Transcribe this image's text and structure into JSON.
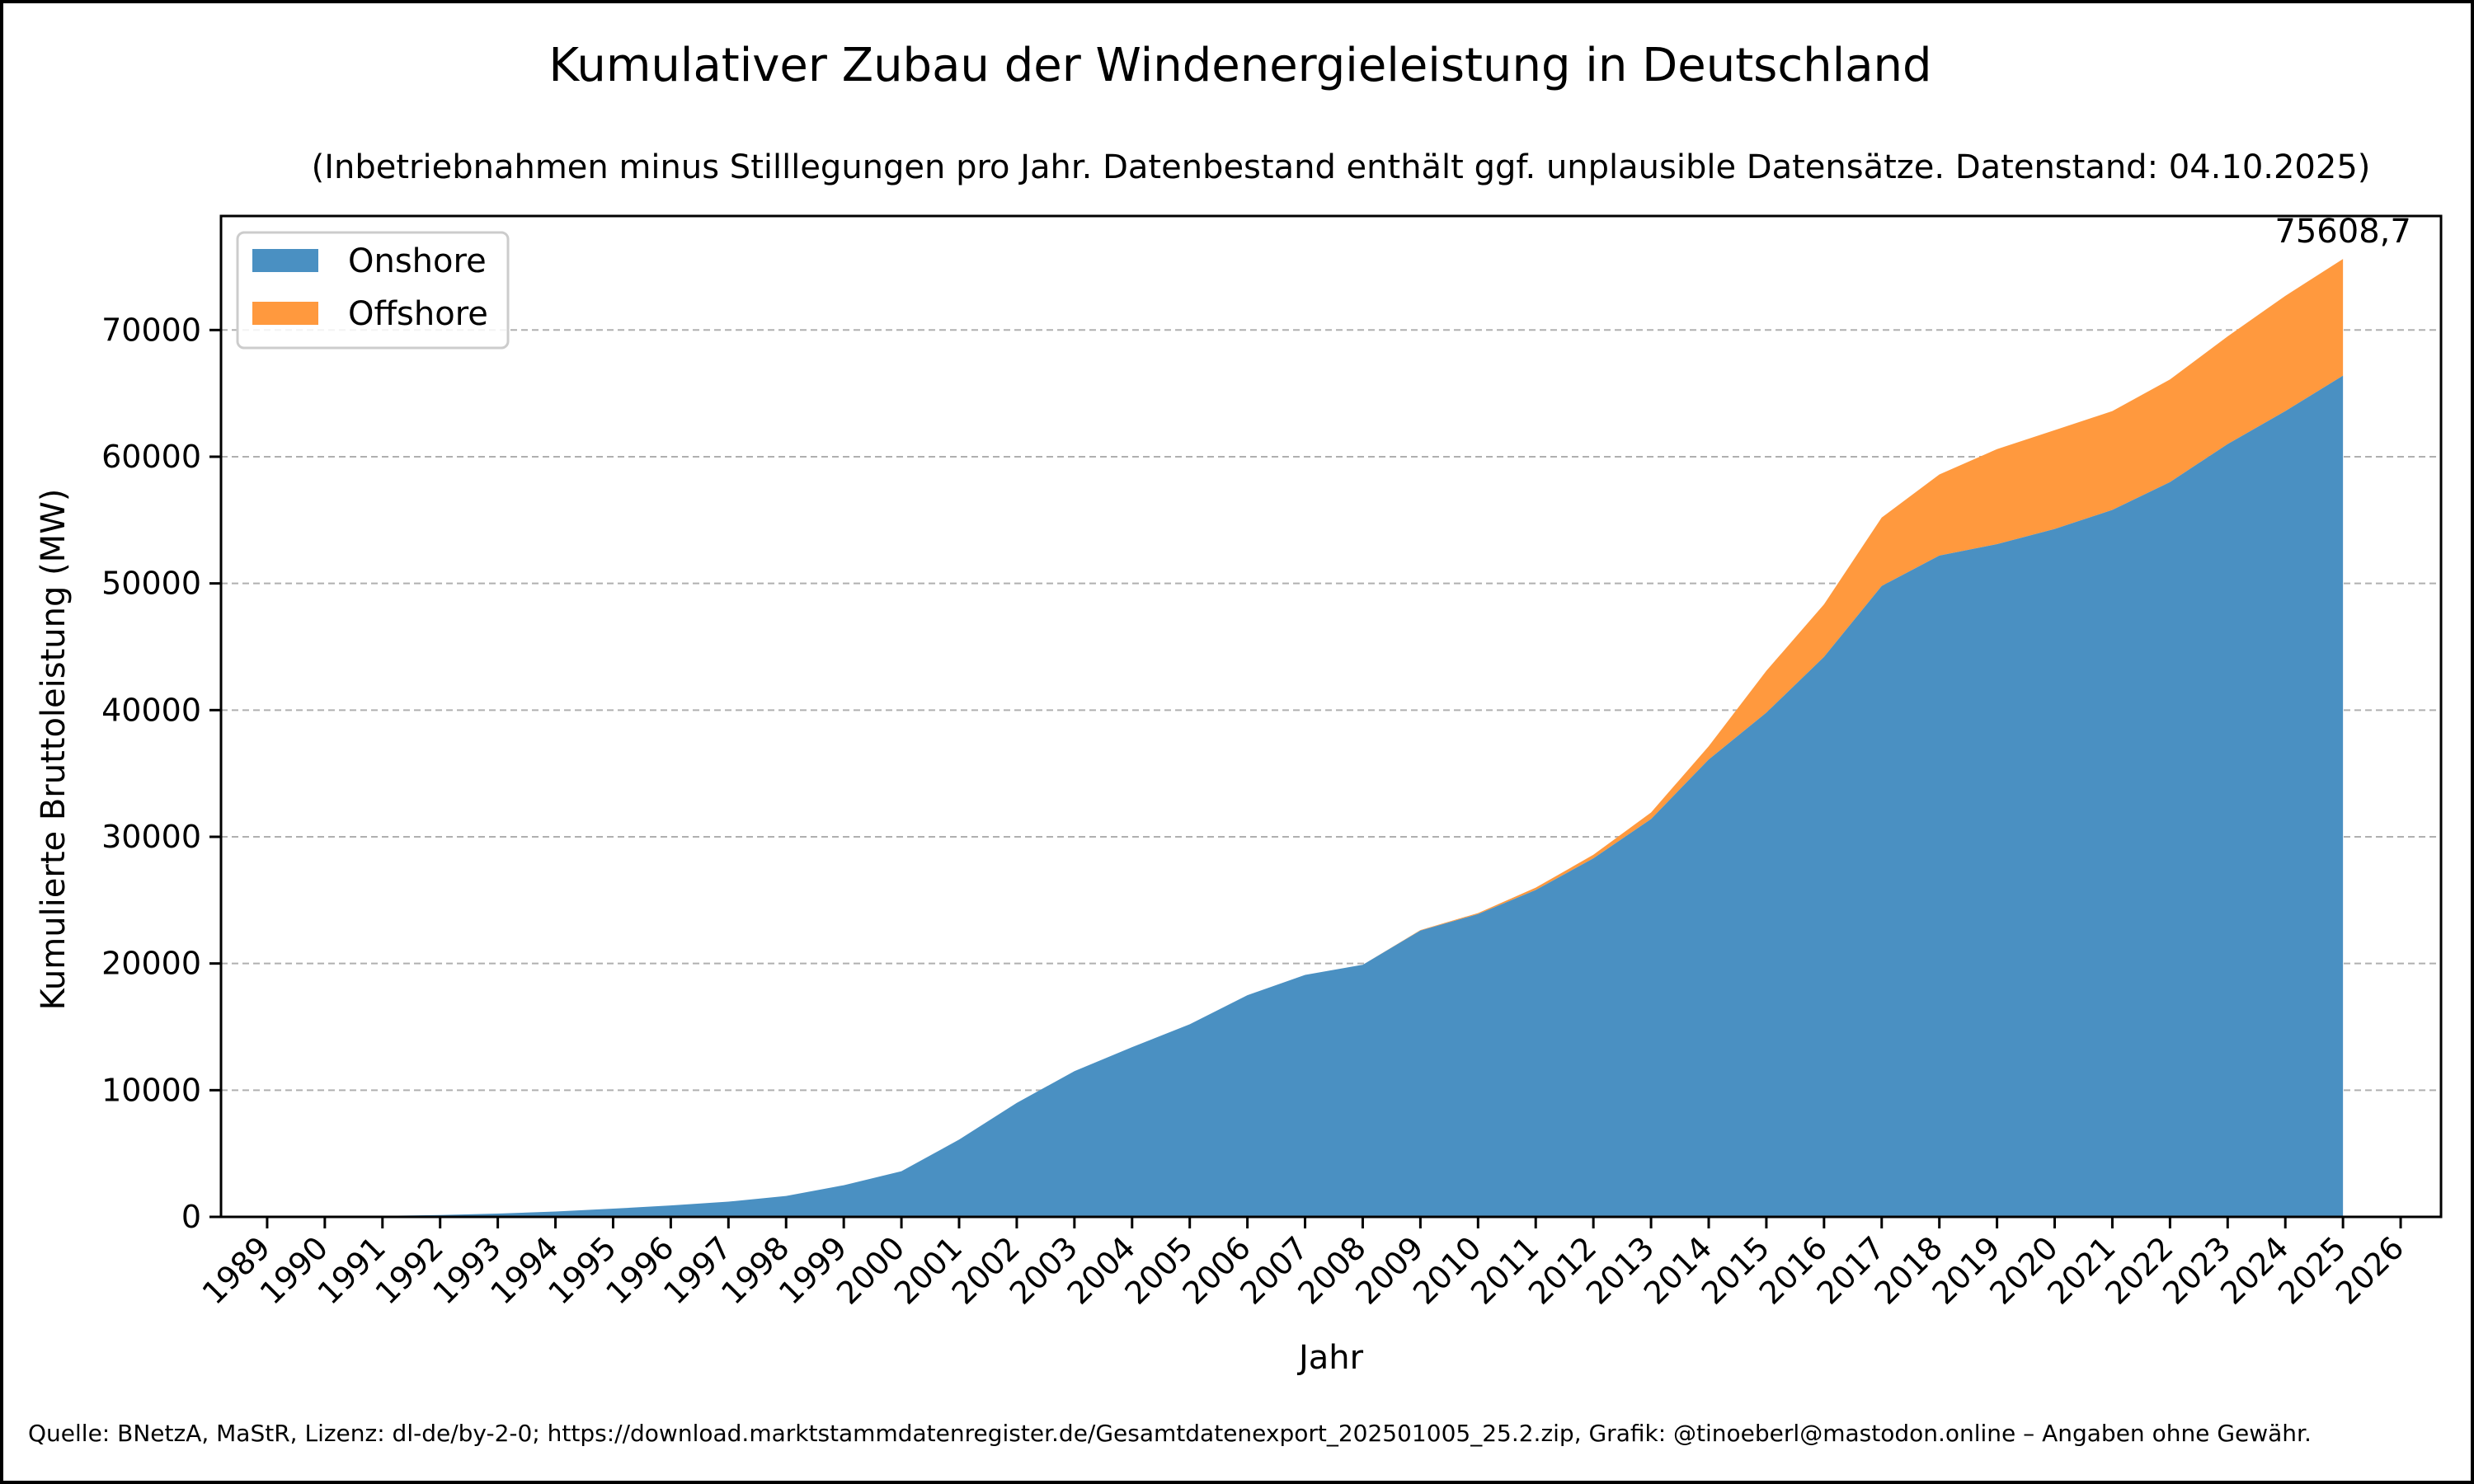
{
  "chart_data": {
    "type": "area",
    "stacked": true,
    "title": "Kumulativer Zubau der Windenergieleistung in Deutschland",
    "subtitle": "(Inbetriebnahmen minus Stilllegungen pro Jahr. Datenbestand enthält ggf. unplausible Datensätze. Datenstand: 04.10.2025)",
    "xlabel": "Jahr",
    "ylabel": "Kumulierte Bruttoleistung (MW)",
    "xlim": [
      1988.2,
      2026.7
    ],
    "ylim": [
      0,
      79000
    ],
    "x_ticks": [
      "1989",
      "1990",
      "1991",
      "1992",
      "1993",
      "1994",
      "1995",
      "1996",
      "1997",
      "1998",
      "1999",
      "2000",
      "2001",
      "2002",
      "2003",
      "2004",
      "2005",
      "2006",
      "2007",
      "2008",
      "2009",
      "2010",
      "2011",
      "2012",
      "2013",
      "2014",
      "2015",
      "2016",
      "2017",
      "2018",
      "2019",
      "2020",
      "2021",
      "2022",
      "2023",
      "2024",
      "2025",
      "2026"
    ],
    "y_ticks": [
      "0",
      "10000",
      "20000",
      "30000",
      "40000",
      "50000",
      "60000",
      "70000"
    ],
    "grid": "y",
    "legend_position": "top-left",
    "series": [
      {
        "name": "Onshore",
        "color": "#4a90c2",
        "values": [
          [
            1989,
            15
          ],
          [
            1990,
            40
          ],
          [
            1991,
            80
          ],
          [
            1992,
            150
          ],
          [
            1993,
            260
          ],
          [
            1994,
            420
          ],
          [
            1995,
            650
          ],
          [
            1996,
            900
          ],
          [
            1997,
            1200
          ],
          [
            1998,
            1650
          ],
          [
            1999,
            2500
          ],
          [
            2000,
            3600
          ],
          [
            2001,
            6100
          ],
          [
            2002,
            9000
          ],
          [
            2003,
            11500
          ],
          [
            2004,
            13400
          ],
          [
            2005,
            15200
          ],
          [
            2006,
            17500
          ],
          [
            2007,
            19100
          ],
          [
            2008,
            19900
          ],
          [
            2009,
            22600
          ],
          [
            2010,
            23900
          ],
          [
            2011,
            25800
          ],
          [
            2012,
            28300
          ],
          [
            2013,
            31400
          ],
          [
            2014,
            36100
          ],
          [
            2015,
            39800
          ],
          [
            2016,
            44200
          ],
          [
            2017,
            49800
          ],
          [
            2018,
            52200
          ],
          [
            2019,
            53100
          ],
          [
            2020,
            54300
          ],
          [
            2021,
            55800
          ],
          [
            2022,
            58000
          ],
          [
            2023,
            61000
          ],
          [
            2024,
            63600
          ],
          [
            2025,
            66400
          ]
        ]
      },
      {
        "name": "Offshore",
        "color": "#ff993e",
        "values": [
          [
            1989,
            0
          ],
          [
            1990,
            0
          ],
          [
            1991,
            0
          ],
          [
            1992,
            0
          ],
          [
            1993,
            0
          ],
          [
            1994,
            0
          ],
          [
            1995,
            0
          ],
          [
            1996,
            0
          ],
          [
            1997,
            0
          ],
          [
            1998,
            0
          ],
          [
            1999,
            0
          ],
          [
            2000,
            0
          ],
          [
            2001,
            0
          ],
          [
            2002,
            0
          ],
          [
            2003,
            0
          ],
          [
            2004,
            0
          ],
          [
            2005,
            0
          ],
          [
            2006,
            0
          ],
          [
            2007,
            0
          ],
          [
            2008,
            0
          ],
          [
            2009,
            35
          ],
          [
            2010,
            80
          ],
          [
            2011,
            190
          ],
          [
            2012,
            280
          ],
          [
            2013,
            520
          ],
          [
            2014,
            1050
          ],
          [
            2015,
            3300
          ],
          [
            2016,
            4150
          ],
          [
            2017,
            5400
          ],
          [
            2018,
            6400
          ],
          [
            2019,
            7500
          ],
          [
            2020,
            7800
          ],
          [
            2021,
            7800
          ],
          [
            2022,
            8100
          ],
          [
            2023,
            8500
          ],
          [
            2024,
            9100
          ],
          [
            2025,
            9208.7
          ]
        ]
      }
    ],
    "annotations": [
      {
        "text": "75608,7",
        "x": 2025,
        "y": 75608.7
      }
    ]
  },
  "source_note": "Quelle: BNetzA, MaStR, Lizenz: dl-de/by-2-0; https://download.marktstammdatenregister.de/Gesamtdatenexport_202501005_25.2.zip, Grafik: @tinoeberl@mastodon.online – Angaben ohne Gewähr."
}
